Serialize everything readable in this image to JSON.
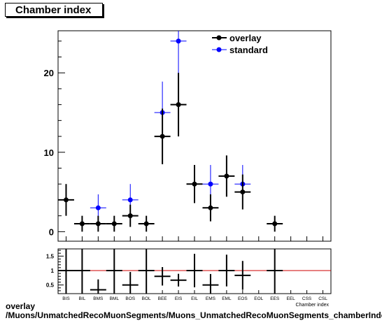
{
  "title": "Chamber index",
  "footer": {
    "line1": "overlay",
    "line2": "/Muons/UnmatchedRecoMuonSegments/Muons_UnmatchedRecoMuonSegments_chamberIndex"
  },
  "colors": {
    "overlay": "#000000",
    "standard": "#0000ff",
    "ratio_line": "#cc0000"
  },
  "chart_data": [
    {
      "type": "scatter",
      "title": "Chamber index",
      "xlabel": "Chamber index",
      "ylabel": "",
      "categories": [
        "BIS",
        "BIL",
        "BMS",
        "BML",
        "BOS",
        "BOL",
        "BEE",
        "EIS",
        "EIL",
        "EMS",
        "EML",
        "EOS",
        "EOL",
        "EES",
        "EEL",
        "CSS",
        "CSL"
      ],
      "ylim": [
        -1.2,
        25.3
      ],
      "yticks": [
        0,
        10,
        20
      ],
      "legend": "top-right",
      "series": [
        {
          "name": "overlay",
          "values": [
            4,
            1,
            1,
            1,
            2,
            1,
            12,
            16,
            6,
            3,
            7,
            5,
            1
          ],
          "errors": [
            2,
            1,
            1,
            1,
            1.4,
            1,
            3.5,
            4,
            2.4,
            1.7,
            2.6,
            2.2,
            1
          ],
          "bins": [
            1,
            2,
            3,
            4,
            5,
            6,
            7,
            8,
            9,
            10,
            11,
            12,
            14
          ]
        },
        {
          "name": "standard",
          "values": [
            3,
            4,
            15,
            24,
            6,
            6
          ],
          "errors": [
            1.7,
            2,
            3.9,
            4.9,
            2.4,
            2.4
          ],
          "bins": [
            3,
            5,
            7,
            8,
            10,
            12
          ]
        }
      ]
    },
    {
      "type": "scatter",
      "title": "",
      "xlabel": "",
      "ylabel": "",
      "ylim": [
        0.2,
        1.75
      ],
      "yticks": [
        0.5,
        1,
        1.5
      ],
      "reference_line": 1,
      "points": [
        {
          "bin": 1,
          "value": 1,
          "error": 1.5
        },
        {
          "bin": 2,
          "value": 1,
          "error": 1.5
        },
        {
          "bin": 3,
          "value": 0.333,
          "error": 0.36
        },
        {
          "bin": 4,
          "value": 1,
          "error": 1.5
        },
        {
          "bin": 5,
          "value": 0.5,
          "error": 0.45
        },
        {
          "bin": 6,
          "value": 1,
          "error": 1.5
        },
        {
          "bin": 7,
          "value": 0.8,
          "error": 0.32
        },
        {
          "bin": 8,
          "value": 0.667,
          "error": 0.22
        },
        {
          "bin": 9,
          "value": 1,
          "error": 0.58
        },
        {
          "bin": 10,
          "value": 0.5,
          "error": 0.38
        },
        {
          "bin": 11,
          "value": 1,
          "error": 0.55
        },
        {
          "bin": 12,
          "value": 0.833,
          "error": 0.5
        },
        {
          "bin": 14,
          "value": 1,
          "error": 1.5
        }
      ]
    }
  ]
}
